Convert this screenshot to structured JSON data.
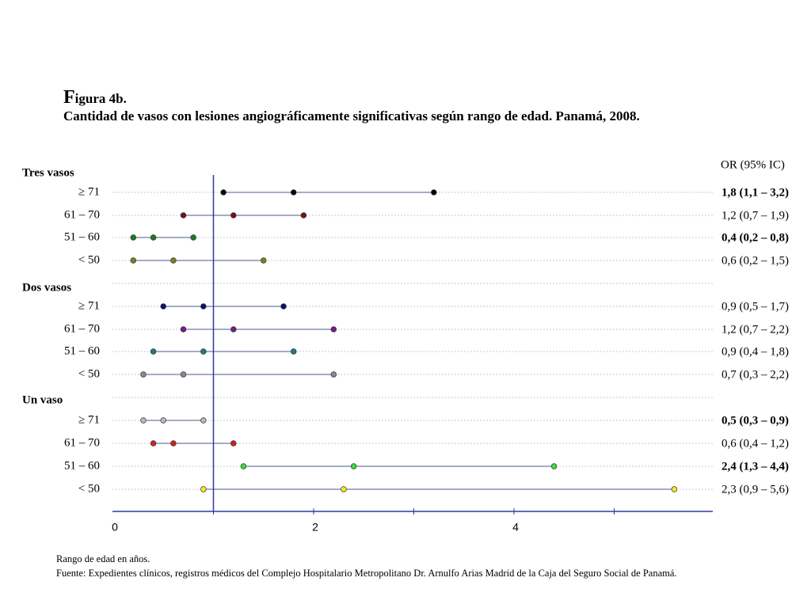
{
  "figure": {
    "label_initial": "F",
    "label_rest": "igura 4b.",
    "title": "Cantidad de vasos con lesiones angiográficamente significativas según rango de edad. Panamá, 2008."
  },
  "footnote": {
    "line1": "Rango de edad en años.",
    "line2": "Fuente: Expedientes clínicos, registros médicos del Complejo Hospitalario Metropolitano Dr. Arnulfo Arias Madrid de la Caja del Seguro Social de Panamá."
  },
  "chart_data": {
    "type": "forest",
    "or_header": "OR (95% IC)",
    "reference_line": 1,
    "xlim": [
      0,
      6
    ],
    "x_ticks": [
      0,
      2,
      4
    ],
    "groups": [
      {
        "name": "Tres vasos",
        "rows": [
          {
            "label": "≥ 71",
            "or": 1.8,
            "low": 1.1,
            "high": 3.2,
            "text": "1,8 (1,1 – 3,2)",
            "significant": true,
            "color": "#000000"
          },
          {
            "label": "61 – 70",
            "or": 1.2,
            "low": 0.7,
            "high": 1.9,
            "text": "1,2 (0,7 – 1,9)",
            "significant": false,
            "color": "#7b1010"
          },
          {
            "label": "51 – 60",
            "or": 0.4,
            "low": 0.2,
            "high": 0.8,
            "text": "0,4 (0,2 – 0,8)",
            "significant": true,
            "color": "#1e7b24"
          },
          {
            "label": "< 50",
            "or": 0.6,
            "low": 0.2,
            "high": 1.5,
            "text": "0,6 (0,2 – 1,5)",
            "significant": false,
            "color": "#7f7f20"
          }
        ]
      },
      {
        "name": "Dos vasos",
        "rows": [
          {
            "label": "≥ 71",
            "or": 0.9,
            "low": 0.5,
            "high": 1.7,
            "text": "0,9 (0,5 – 1,7)",
            "significant": false,
            "color": "#0a1070"
          },
          {
            "label": "61 – 70",
            "or": 1.2,
            "low": 0.7,
            "high": 2.2,
            "text": "1,2 (0,7 – 2,2)",
            "significant": false,
            "color": "#7a1a88"
          },
          {
            "label": "51 – 60",
            "or": 0.9,
            "low": 0.4,
            "high": 1.8,
            "text": "0,9 (0,4 – 1,8)",
            "significant": false,
            "color": "#1f7a80"
          },
          {
            "label": "< 50",
            "or": 0.7,
            "low": 0.3,
            "high": 2.2,
            "text": "0,7 (0,3 – 2,2)",
            "significant": false,
            "color": "#8a8a8a"
          }
        ]
      },
      {
        "name": "Un vaso",
        "rows": [
          {
            "label": "≥ 71",
            "or": 0.5,
            "low": 0.3,
            "high": 0.9,
            "text": "0,5 (0,3 – 0,9)",
            "significant": true,
            "color": "#b8b8b8"
          },
          {
            "label": "61 – 70",
            "or": 0.6,
            "low": 0.4,
            "high": 1.2,
            "text": "0,6 (0,4 – 1,2)",
            "significant": false,
            "color": "#d81e1e"
          },
          {
            "label": "51 – 60",
            "or": 2.4,
            "low": 1.3,
            "high": 4.4,
            "text": "2,4 (1,3 – 4,4)",
            "significant": true,
            "color": "#3ddc3d"
          },
          {
            "label": "< 50",
            "or": 2.3,
            "low": 0.9,
            "high": 5.6,
            "text": "2,3 (0,9 – 5,6)",
            "significant": false,
            "color": "#f0ee1c"
          }
        ]
      }
    ]
  }
}
